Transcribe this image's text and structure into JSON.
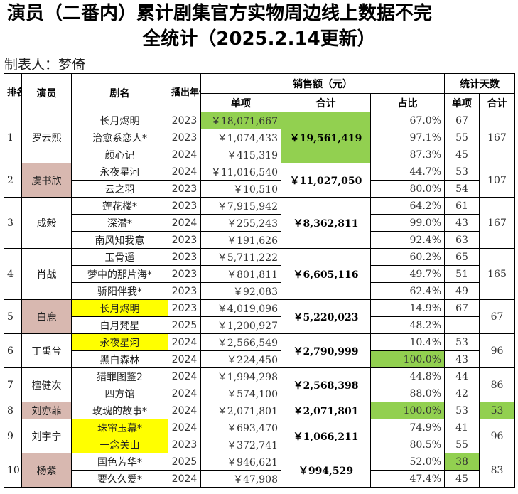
{
  "title": {
    "line1": "演员（二番内）累计剧集官方实物周边线上数据不完",
    "line2": "全统计（2025.2.14更新）"
  },
  "maker": "制表人：梦倚",
  "headers": {
    "rank": "排名",
    "actor": "演员",
    "drama": "剧名",
    "year": "播出年份",
    "sales": "销售额（元）",
    "single": "单项",
    "total": "合计",
    "share": "占比",
    "days": "统计天数",
    "days_single": "单项",
    "days_total": "合计"
  },
  "colors": {
    "green": "#92d050",
    "yellow": "#ffff00",
    "pink": "#d8b8b0"
  },
  "groups": [
    {
      "rank": "1",
      "actor": "罗云熙",
      "total": "￥19,561,419",
      "days_total": "167",
      "rows": [
        {
          "drama": "长月烬明",
          "year": "2023",
          "single": "￥18,071,667",
          "share": "67.0%",
          "days": "67"
        },
        {
          "drama": "治愈系恋人*",
          "year": "2023",
          "single": "￥1,074,433",
          "share": "97.1%",
          "days": "55"
        },
        {
          "drama": "颜心记",
          "year": "2024",
          "single": "￥415,319",
          "share": "87.3%",
          "days": "45"
        }
      ]
    },
    {
      "rank": "2",
      "actor": "虞书欣",
      "total": "￥11,027,050",
      "days_total": "107",
      "rows": [
        {
          "drama": "永夜星河",
          "year": "2024",
          "single": "￥11,016,540",
          "share": "44.7%",
          "days": "53"
        },
        {
          "drama": "云之羽",
          "year": "2023",
          "single": "￥10,510",
          "share": "80.0%",
          "days": "54"
        }
      ]
    },
    {
      "rank": "3",
      "actor": "成毅",
      "total": "￥8,362,811",
      "days_total": "167",
      "rows": [
        {
          "drama": "莲花楼*",
          "year": "2023",
          "single": "￥7,915,942",
          "share": "64.2%",
          "days": "61"
        },
        {
          "drama": "深潜*",
          "year": "2024",
          "single": "￥255,243",
          "share": "99.0%",
          "days": "43"
        },
        {
          "drama": "南风知我意",
          "year": "2023",
          "single": "￥191,626",
          "share": "92.4%",
          "days": "63"
        }
      ]
    },
    {
      "rank": "4",
      "actor": "肖战",
      "total": "￥6,605,116",
      "days_total": "165",
      "rows": [
        {
          "drama": "玉骨遥",
          "year": "2023",
          "single": "￥5,711,222",
          "share": "60.2%",
          "days": "65"
        },
        {
          "drama": "梦中的那片海*",
          "year": "2023",
          "single": "￥801,811",
          "share": "49.7%",
          "days": "51"
        },
        {
          "drama": "骄阳伴我*",
          "year": "2023",
          "single": "￥92,083",
          "share": "62.4%",
          "days": "49"
        }
      ]
    },
    {
      "rank": "5",
      "actor": "白鹿",
      "total": "￥5,220,023",
      "days_total": "67",
      "rows": [
        {
          "drama": "长月烬明",
          "year": "2023",
          "single": "￥4,019,096",
          "share": "14.9%",
          "days": "67"
        },
        {
          "drama": "白月梵星",
          "year": "2025",
          "single": "￥1,200,927",
          "share": "48.2%",
          "days": ""
        }
      ]
    },
    {
      "rank": "6",
      "actor": "丁禹兮",
      "total": "￥2,790,999",
      "days_total": "96",
      "rows": [
        {
          "drama": "永夜星河",
          "year": "2024",
          "single": "￥2,566,549",
          "share": "10.4%",
          "days": "53"
        },
        {
          "drama": "黑白森林",
          "year": "2024",
          "single": "￥224,450",
          "share": "100.0%",
          "days": "43"
        }
      ]
    },
    {
      "rank": "7",
      "actor": "檀健次",
      "total": "￥2,568,398",
      "days_total": "86",
      "rows": [
        {
          "drama": "猎罪图鉴2",
          "year": "2024",
          "single": "￥1,994,298",
          "share": "44.8%",
          "days": "44"
        },
        {
          "drama": "四方馆",
          "year": "2024",
          "single": "￥574,100",
          "share": "88.0%",
          "days": "42"
        }
      ]
    },
    {
      "rank": "8",
      "actor": "刘亦菲",
      "total": "￥2,071,801",
      "days_total": "53",
      "rows": [
        {
          "drama": "玫瑰的故事*",
          "year": "2024",
          "single": "￥2,071,801",
          "share": "100.0%",
          "days": "53"
        }
      ]
    },
    {
      "rank": "9",
      "actor": "刘宇宁",
      "total": "￥1,066,211",
      "days_total": "96",
      "rows": [
        {
          "drama": "珠帘玉幕*",
          "year": "2024",
          "single": "￥693,470",
          "share": "74.9%",
          "days": "41"
        },
        {
          "drama": "一念关山",
          "year": "2023",
          "single": "￥372,741",
          "share": "80.5%",
          "days": "55"
        }
      ]
    },
    {
      "rank": "10",
      "actor": "杨紫",
      "total": "￥994,529",
      "days_total": "83",
      "rows": [
        {
          "drama": "国色芳华*",
          "year": "2025",
          "single": "￥946,621",
          "share": "52.0%",
          "days": "38"
        },
        {
          "drama": "要久久爱*",
          "year": "2024",
          "single": "￥47,908",
          "share": "47.4%",
          "days": "45"
        }
      ]
    }
  ]
}
